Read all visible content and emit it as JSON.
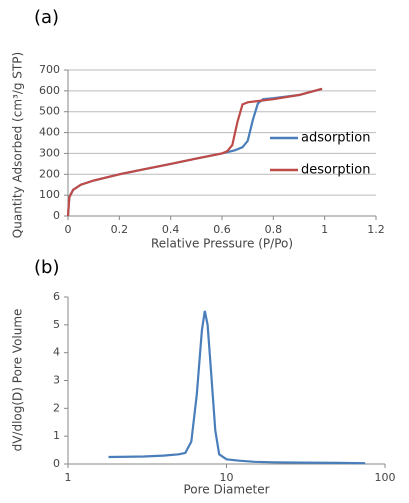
{
  "chart_data": [
    {
      "type": "line",
      "label": "(a)",
      "x_label": "Relative Pressure (P/Po)",
      "y_label": "Quantity Adsorbed (cm³/g STP)",
      "xlim": [
        0,
        1.2
      ],
      "xticks": [
        0,
        0.2,
        0.4,
        0.6,
        0.8,
        1,
        1.2
      ],
      "ylim": [
        0,
        700
      ],
      "yticks": [
        0,
        100,
        200,
        300,
        400,
        500,
        600,
        700
      ],
      "grid": true,
      "legend": "right",
      "log_x": false,
      "series": [
        {
          "name": "adsorption",
          "color": "#4a7ebb",
          "x": [
            0,
            0.005,
            0.02,
            0.05,
            0.1,
            0.2,
            0.3,
            0.4,
            0.5,
            0.6,
            0.65,
            0.68,
            0.7,
            0.72,
            0.74,
            0.76,
            0.8,
            0.9,
            0.99
          ],
          "values": [
            0,
            90,
            125,
            150,
            170,
            200,
            225,
            250,
            275,
            300,
            315,
            330,
            360,
            460,
            540,
            560,
            565,
            580,
            610
          ]
        },
        {
          "name": "desorption",
          "color": "#be4b48",
          "x": [
            0,
            0.005,
            0.02,
            0.05,
            0.1,
            0.2,
            0.3,
            0.4,
            0.5,
            0.6,
            0.62,
            0.64,
            0.66,
            0.68,
            0.7,
            0.8,
            0.9,
            0.99
          ],
          "values": [
            0,
            90,
            125,
            150,
            170,
            200,
            225,
            250,
            275,
            300,
            310,
            340,
            450,
            535,
            545,
            560,
            580,
            610
          ]
        }
      ]
    },
    {
      "type": "line",
      "label": "(b)",
      "x_label": "Pore Diameter",
      "y_label": "dV/dlog(D) Pore Volume",
      "xlim": [
        1,
        100
      ],
      "xticks": [
        1,
        10,
        100
      ],
      "log_x": true,
      "ylim": [
        0,
        6
      ],
      "yticks": [
        0,
        1,
        2,
        3,
        4,
        5,
        6
      ],
      "grid": false,
      "series": [
        {
          "color": "#4a7ebb",
          "x": [
            1.8,
            3,
            4,
            5,
            5.5,
            6,
            6.5,
            7,
            7.3,
            7.6,
            8,
            8.5,
            9,
            10,
            12,
            15,
            20,
            30,
            50,
            75
          ],
          "values": [
            0.25,
            0.27,
            0.3,
            0.35,
            0.4,
            0.8,
            2.5,
            4.8,
            5.5,
            5,
            3.3,
            1.2,
            0.35,
            0.17,
            0.12,
            0.08,
            0.06,
            0.05,
            0.04,
            0.03
          ]
        }
      ]
    }
  ]
}
